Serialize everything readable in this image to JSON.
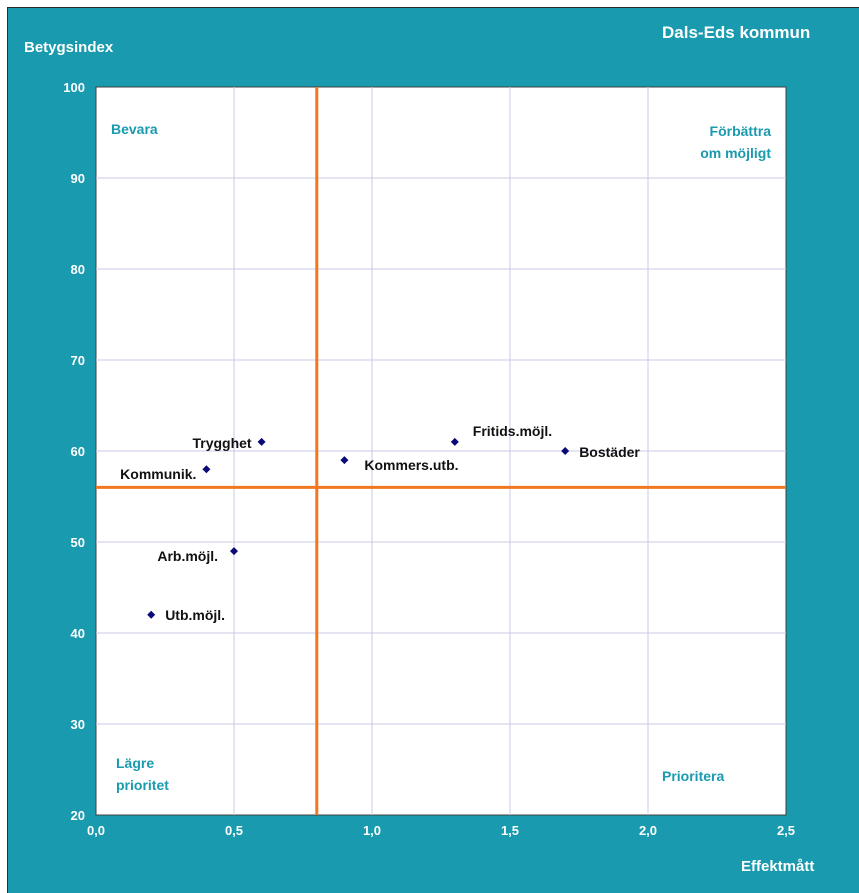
{
  "chart_data": {
    "type": "scatter",
    "title": "Dals-Eds kommun",
    "xlabel": "Effektmått",
    "ylabel": "Betygsindex",
    "xlim": [
      0,
      2.5
    ],
    "ylim": [
      20,
      100
    ],
    "x_ticks": [
      "0,0",
      "0,5",
      "1,0",
      "1,5",
      "2,0",
      "2,5"
    ],
    "y_ticks": [
      "20",
      "30",
      "40",
      "50",
      "60",
      "70",
      "80",
      "90",
      "100"
    ],
    "grid": true,
    "reference_lines": {
      "x": 0.8,
      "y": 56
    },
    "colors": {
      "background": "#1a9aae",
      "marker": "#0a0a78",
      "reference": "#f07820",
      "grid": "#c8c8e6",
      "quadrant_text": "#1a9aae"
    },
    "quadrants": {
      "top_left": "Bevara",
      "top_right_1": "Förbättra",
      "top_right_2": "om möjligt",
      "bottom_left_1": "Lägre",
      "bottom_left_2": "prioritet",
      "bottom_right": "Prioritera"
    },
    "points": [
      {
        "label": "Trygghet",
        "x": 0.6,
        "y": 61,
        "side": "left"
      },
      {
        "label": "Kommunik.",
        "x": 0.4,
        "y": 58,
        "side": "left"
      },
      {
        "label": "Kommers.utb.",
        "x": 0.9,
        "y": 59,
        "side": "right"
      },
      {
        "label": "Fritids.möjl.",
        "x": 1.3,
        "y": 61,
        "side": "right"
      },
      {
        "label": "Bostäder",
        "x": 1.7,
        "y": 60,
        "side": "right"
      },
      {
        "label": "Arb.möjl.",
        "x": 0.5,
        "y": 49,
        "side": "left"
      },
      {
        "label": "Utb.möjl.",
        "x": 0.2,
        "y": 42,
        "side": "right"
      }
    ]
  }
}
